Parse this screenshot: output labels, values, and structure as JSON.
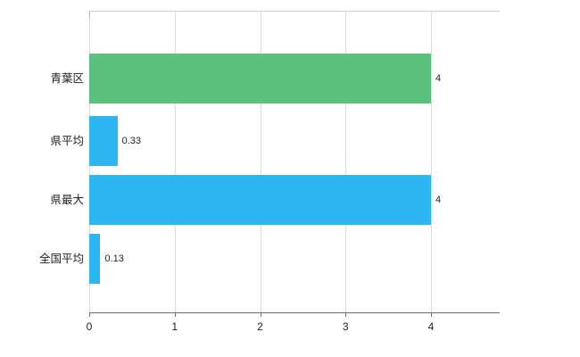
{
  "chart_data": {
    "type": "bar",
    "orientation": "horizontal",
    "title": "",
    "xlabel": "",
    "ylabel": "",
    "legend": "none",
    "grid": "vertical",
    "categories": [
      "青葉区",
      "県平均",
      "県最大",
      "全国平均"
    ],
    "values": [
      4,
      0.33,
      4,
      0.13
    ],
    "value_labels": [
      "4",
      "0.33",
      "4",
      "0.13"
    ],
    "bar_colors": [
      "#5cc17e",
      "#2eb6f3",
      "#2eb6f3",
      "#2eb6f3"
    ],
    "x_ticks": [
      0,
      1,
      2,
      3,
      4
    ],
    "x_tick_labels": [
      "0",
      "1",
      "2",
      "3",
      "4"
    ],
    "xlim": [
      0,
      4.8
    ],
    "colors": {
      "background": "#ffffff",
      "gridline": "#d9d9d9",
      "axis": "#6b6b6b",
      "text": "#222222"
    }
  }
}
